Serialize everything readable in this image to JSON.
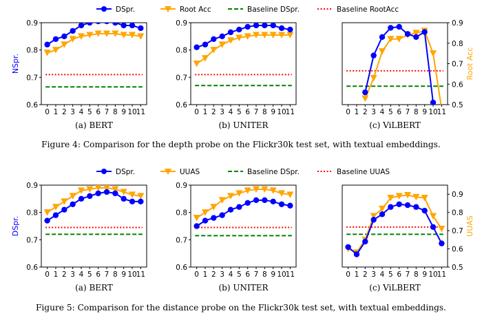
{
  "chart_data": [
    {
      "figure_caption": "Figure 4: Comparison for the depth probe on the Flickr30k test set, with textual embeddings.",
      "legend": {
        "placement": "top-center",
        "entries": [
          {
            "name": "DSpr.",
            "color": "#0000ff",
            "style": "line-circle"
          },
          {
            "name": "Root Acc",
            "color": "#ffa500",
            "style": "line-triangle-down"
          },
          {
            "name": "Baseline DSpr.",
            "color": "#008000",
            "style": "dashed"
          },
          {
            "name": "Baseline RootAcc",
            "color": "#ff0000",
            "style": "dotted"
          }
        ]
      },
      "ylabel_left": "NSpr.",
      "ylabel_right": "Root Acc",
      "panels": [
        {
          "type": "line",
          "caption": "(a) BERT",
          "x": [
            0,
            1,
            2,
            3,
            4,
            5,
            6,
            7,
            8,
            9,
            10,
            11
          ],
          "ylim_left": [
            0.6,
            0.9
          ],
          "yticks_left": [
            "0.6",
            "0.7",
            "0.8",
            "0.9"
          ],
          "show_left_axis": true,
          "series": [
            {
              "name": "DSpr.",
              "axis": "left",
              "values": [
                0.82,
                0.84,
                0.85,
                0.87,
                0.89,
                0.9,
                0.905,
                0.905,
                0.9,
                0.89,
                0.89,
                0.88
              ]
            },
            {
              "name": "Root Acc",
              "axis": "left",
              "values": [
                0.79,
                0.8,
                0.82,
                0.84,
                0.85,
                0.855,
                0.86,
                0.86,
                0.86,
                0.855,
                0.855,
                0.85
              ]
            }
          ],
          "baselines": [
            {
              "name": "Baseline DSpr.",
              "axis": "left",
              "value": 0.665
            },
            {
              "name": "Baseline RootAcc",
              "axis": "left",
              "value": 0.71
            }
          ]
        },
        {
          "type": "line",
          "caption": "(b) UNITER",
          "x": [
            0,
            1,
            2,
            3,
            4,
            5,
            6,
            7,
            8,
            9,
            10,
            11
          ],
          "ylim_left": [
            0.6,
            0.9
          ],
          "yticks_left": [
            "0.6",
            "0.7",
            "0.8",
            "0.9"
          ],
          "show_left_axis": true,
          "series": [
            {
              "name": "DSpr.",
              "axis": "left",
              "values": [
                0.81,
                0.82,
                0.84,
                0.85,
                0.865,
                0.875,
                0.885,
                0.89,
                0.89,
                0.89,
                0.88,
                0.875
              ]
            },
            {
              "name": "Root Acc",
              "axis": "left",
              "values": [
                0.75,
                0.77,
                0.8,
                0.82,
                0.835,
                0.845,
                0.85,
                0.855,
                0.855,
                0.855,
                0.855,
                0.855
              ]
            }
          ],
          "baselines": [
            {
              "name": "Baseline DSpr.",
              "axis": "left",
              "value": 0.67
            },
            {
              "name": "Baseline RootAcc",
              "axis": "left",
              "value": 0.71
            }
          ]
        },
        {
          "type": "line",
          "caption": "(c) ViLBERT",
          "x": [
            0,
            1,
            2,
            3,
            4,
            5,
            6,
            7,
            8,
            9,
            10,
            11
          ],
          "ylim_left": [
            0.6,
            0.9
          ],
          "show_left_axis": false,
          "ylim_right": [
            0.5,
            0.9
          ],
          "yticks_right": [
            "0.5",
            "0.6",
            "0.7",
            "0.8",
            "0.9"
          ],
          "series": [
            {
              "name": "DSpr.",
              "axis": "right",
              "values": [
                null,
                null,
                0.56,
                0.74,
                0.83,
                0.875,
                0.88,
                0.845,
                0.83,
                0.855,
                0.51,
                null
              ]
            },
            {
              "name": "Root Acc",
              "axis": "right",
              "values": [
                null,
                null,
                0.53,
                0.63,
                0.76,
                0.82,
                0.82,
                0.84,
                0.85,
                0.86,
                0.75,
                0.48
              ]
            }
          ],
          "baselines": [
            {
              "name": "Baseline DSpr.",
              "axis": "right",
              "value": 0.59
            },
            {
              "name": "Baseline RootAcc",
              "axis": "right",
              "value": 0.665
            }
          ]
        }
      ]
    },
    {
      "figure_caption": "Figure 5: Comparison for the distance probe on the Flickr30k test set, with textual embeddings.",
      "legend": {
        "placement": "top-center",
        "entries": [
          {
            "name": "DSpr.",
            "color": "#0000ff",
            "style": "line-circle"
          },
          {
            "name": "UUAS",
            "color": "#ffa500",
            "style": "line-triangle-down"
          },
          {
            "name": "Baseline DSpr.",
            "color": "#008000",
            "style": "dashed"
          },
          {
            "name": "Baseline UUAS",
            "color": "#ff0000",
            "style": "dotted"
          }
        ]
      },
      "ylabel_left": "DSpr.",
      "ylabel_right": "UUAS",
      "panels": [
        {
          "type": "line",
          "caption": "(a) BERT",
          "x": [
            0,
            1,
            2,
            3,
            4,
            5,
            6,
            7,
            8,
            9,
            10,
            11
          ],
          "ylim_left": [
            0.6,
            0.9
          ],
          "yticks_left": [
            "0.6",
            "0.7",
            "0.8",
            "0.9"
          ],
          "show_left_axis": true,
          "series": [
            {
              "name": "DSpr.",
              "axis": "left",
              "values": [
                0.77,
                0.79,
                0.81,
                0.83,
                0.85,
                0.86,
                0.87,
                0.875,
                0.87,
                0.85,
                0.84,
                0.84
              ]
            },
            {
              "name": "UUAS",
              "axis": "left",
              "values": [
                0.8,
                0.82,
                0.84,
                0.86,
                0.88,
                0.885,
                0.89,
                0.89,
                0.885,
                0.875,
                0.865,
                0.86
              ]
            }
          ],
          "baselines": [
            {
              "name": "Baseline DSpr.",
              "axis": "left",
              "value": 0.72
            },
            {
              "name": "Baseline UUAS",
              "axis": "left",
              "value": 0.745
            }
          ]
        },
        {
          "type": "line",
          "caption": "(b) UNITER",
          "x": [
            0,
            1,
            2,
            3,
            4,
            5,
            6,
            7,
            8,
            9,
            10,
            11
          ],
          "ylim_left": [
            0.6,
            0.9
          ],
          "yticks_left": [
            "0.6",
            "0.7",
            "0.8",
            "0.9"
          ],
          "show_left_axis": true,
          "series": [
            {
              "name": "DSpr.",
              "axis": "left",
              "values": [
                0.75,
                0.77,
                0.78,
                0.79,
                0.81,
                0.82,
                0.835,
                0.845,
                0.845,
                0.84,
                0.83,
                0.825
              ]
            },
            {
              "name": "UUAS",
              "axis": "left",
              "values": [
                0.78,
                0.8,
                0.82,
                0.845,
                0.86,
                0.87,
                0.88,
                0.885,
                0.885,
                0.88,
                0.87,
                0.865
              ]
            }
          ],
          "baselines": [
            {
              "name": "Baseline DSpr.",
              "axis": "left",
              "value": 0.715
            },
            {
              "name": "Baseline UUAS",
              "axis": "left",
              "value": 0.745
            }
          ]
        },
        {
          "type": "line",
          "caption": "(c) ViLBERT",
          "x": [
            0,
            1,
            2,
            3,
            4,
            5,
            6,
            7,
            8,
            9,
            10,
            11
          ],
          "ylim_left": [
            0.6,
            0.9
          ],
          "show_left_axis": false,
          "ylim_right": [
            0.5,
            0.95
          ],
          "yticks_right": [
            "0.5",
            "0.6",
            "0.7",
            "0.8",
            "0.9"
          ],
          "series": [
            {
              "name": "DSpr.",
              "axis": "right",
              "values": [
                0.61,
                0.57,
                0.64,
                0.76,
                0.79,
                0.83,
                0.845,
                0.84,
                0.83,
                0.81,
                0.72,
                0.63
              ]
            },
            {
              "name": "UUAS",
              "axis": "right",
              "values": [
                0.6,
                0.58,
                0.65,
                0.78,
                0.82,
                0.88,
                0.89,
                0.895,
                0.885,
                0.88,
                0.78,
                0.71
              ]
            }
          ],
          "baselines": [
            {
              "name": "Baseline DSpr.",
              "axis": "right",
              "value": 0.68
            },
            {
              "name": "Baseline UUAS",
              "axis": "right",
              "value": 0.72
            }
          ]
        }
      ]
    }
  ]
}
